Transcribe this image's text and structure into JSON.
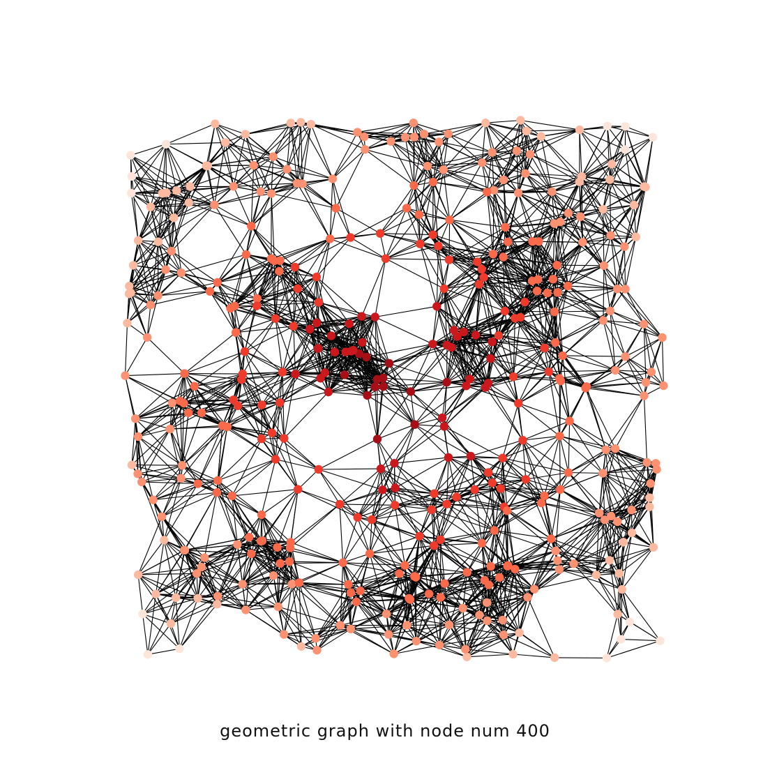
{
  "caption": "geometric graph with node num 400",
  "graph": {
    "type": "random-geometric-graph",
    "node_count": 400,
    "edge_color": "#000000",
    "node_colormap": [
      "#fee5d9",
      "#fcbba1",
      "#fc9272",
      "#fb6a4a",
      "#ef3b2c",
      "#cb181d",
      "#a50f15"
    ],
    "node_color_meaning": "closeness to the center (darker red = more central)"
  }
}
